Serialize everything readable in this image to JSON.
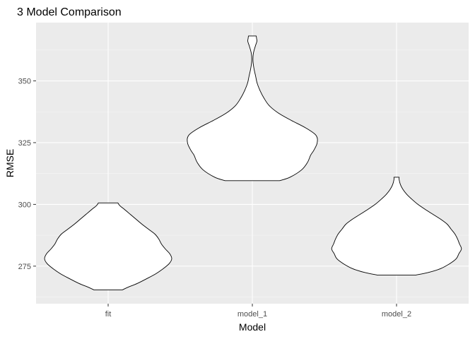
{
  "chart_data": {
    "type": "violin",
    "title": "3 Model Comparison",
    "xlabel": "Model",
    "ylabel": "RMSE",
    "categories": [
      "fit",
      "model_1",
      "model_2"
    ],
    "y_ticks": [
      275,
      300,
      325,
      350
    ],
    "ylim": [
      259.8,
      373.6
    ],
    "grid": true,
    "legend": "none",
    "colors": {
      "panel": "#ebebeb",
      "grid_major": "#ffffff",
      "violin_fill": "#ffffff",
      "violin_stroke": "#000000",
      "tick_text": "#4d4d4d"
    },
    "series": [
      {
        "category": "fit",
        "min": 265.4,
        "max": 300.6,
        "profile": [
          [
            265.4,
            0.22
          ],
          [
            266.4,
            0.3
          ],
          [
            268.0,
            0.45
          ],
          [
            270.0,
            0.6
          ],
          [
            272.0,
            0.74
          ],
          [
            274.0,
            0.85
          ],
          [
            276.0,
            0.94
          ],
          [
            278.0,
            0.98
          ],
          [
            280.0,
            0.95
          ],
          [
            282.0,
            0.88
          ],
          [
            284.0,
            0.82
          ],
          [
            286.0,
            0.78
          ],
          [
            288.0,
            0.72
          ],
          [
            290.0,
            0.62
          ],
          [
            292.0,
            0.52
          ],
          [
            294.0,
            0.43
          ],
          [
            296.0,
            0.34
          ],
          [
            298.0,
            0.25
          ],
          [
            299.5,
            0.18
          ],
          [
            300.6,
            0.15
          ]
        ]
      },
      {
        "category": "model_1",
        "min": 309.6,
        "max": 368.2,
        "profile": [
          [
            309.6,
            0.42
          ],
          [
            311.0,
            0.58
          ],
          [
            314.0,
            0.76
          ],
          [
            317.0,
            0.85
          ],
          [
            320.0,
            0.9
          ],
          [
            322.0,
            0.95
          ],
          [
            325.0,
            1.0
          ],
          [
            328.0,
            0.98
          ],
          [
            331.0,
            0.82
          ],
          [
            334.0,
            0.6
          ],
          [
            337.0,
            0.4
          ],
          [
            340.0,
            0.26
          ],
          [
            343.0,
            0.18
          ],
          [
            346.0,
            0.12
          ],
          [
            349.0,
            0.075
          ],
          [
            352.0,
            0.05
          ],
          [
            355.0,
            0.025
          ],
          [
            358.0,
            0.01
          ],
          [
            361.0,
            0.015
          ],
          [
            364.0,
            0.045
          ],
          [
            366.0,
            0.07
          ],
          [
            367.2,
            0.065
          ],
          [
            368.2,
            0.06
          ]
        ]
      },
      {
        "category": "model_2",
        "min": 271.4,
        "max": 311.0,
        "profile": [
          [
            271.4,
            0.3
          ],
          [
            272.5,
            0.5
          ],
          [
            274.0,
            0.68
          ],
          [
            276.0,
            0.82
          ],
          [
            278.0,
            0.92
          ],
          [
            280.0,
            0.96
          ],
          [
            282.0,
            1.0
          ],
          [
            284.0,
            0.97
          ],
          [
            286.0,
            0.94
          ],
          [
            288.0,
            0.9
          ],
          [
            290.0,
            0.84
          ],
          [
            292.0,
            0.78
          ],
          [
            294.0,
            0.68
          ],
          [
            296.0,
            0.56
          ],
          [
            298.0,
            0.44
          ],
          [
            300.0,
            0.33
          ],
          [
            302.0,
            0.24
          ],
          [
            304.0,
            0.16
          ],
          [
            306.0,
            0.1
          ],
          [
            308.0,
            0.06
          ],
          [
            310.0,
            0.04
          ],
          [
            311.0,
            0.04
          ]
        ]
      }
    ]
  }
}
